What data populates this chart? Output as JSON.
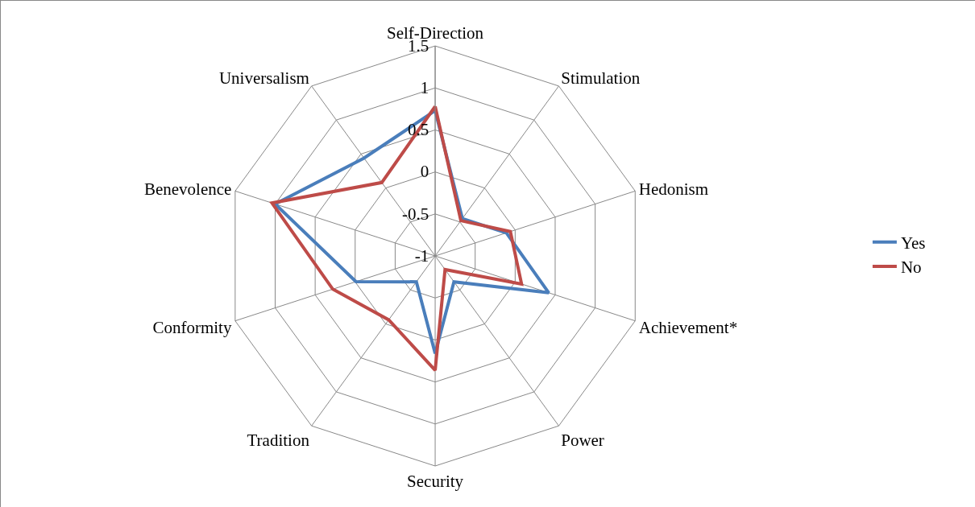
{
  "chart_data": {
    "type": "radar",
    "categories": [
      "Self-Direction",
      "Stimulation",
      "Hedonism",
      "Achievement*",
      "Power",
      "Security",
      "Tradition",
      "Conformity",
      "Benevolence",
      "Universalism"
    ],
    "series": [
      {
        "name": "Yes",
        "color": "#4a7ebb",
        "values": [
          0.73,
          -0.45,
          -0.11,
          0.42,
          -0.62,
          0.16,
          -0.62,
          -0.01,
          1.0,
          0.44
        ]
      },
      {
        "name": "No",
        "color": "#be4b48",
        "values": [
          0.78,
          -0.48,
          -0.06,
          0.08,
          -0.8,
          0.36,
          -0.06,
          0.28,
          1.04,
          0.08
        ]
      }
    ],
    "ylim": [
      -1,
      1.5
    ],
    "yticks": [
      -1,
      -0.5,
      0,
      0.5,
      1,
      1.5
    ],
    "grid": true,
    "legend": "right",
    "marker": "none",
    "line_style": "solid"
  }
}
